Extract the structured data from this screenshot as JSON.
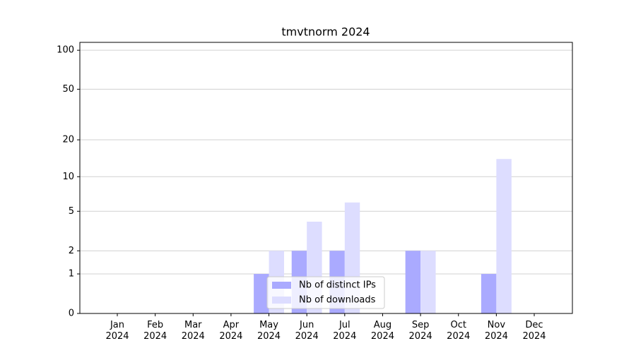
{
  "chart_data": {
    "type": "bar",
    "title": "tmvtnorm 2024",
    "categories": [
      "Jan 2024",
      "Feb 2024",
      "Mar 2024",
      "Apr 2024",
      "May 2024",
      "Jun 2024",
      "Jul 2024",
      "Aug 2024",
      "Sep 2024",
      "Oct 2024",
      "Nov 2024",
      "Dec 2024"
    ],
    "series": [
      {
        "name": "Nb of distinct IPs",
        "color": "#aaaaff",
        "values": [
          0,
          0,
          0,
          0,
          1,
          2,
          2,
          0,
          2,
          0,
          1,
          0
        ]
      },
      {
        "name": "Nb of downloads",
        "color": "#ddddff",
        "values": [
          0,
          0,
          0,
          0,
          2,
          4,
          6,
          0,
          2,
          0,
          14,
          0
        ]
      }
    ],
    "yscale": "log1p",
    "ylim": [
      0,
      115
    ],
    "yticks": [
      0,
      1,
      2,
      5,
      10,
      20,
      50,
      100
    ],
    "grid": true,
    "legend": "lower center"
  }
}
